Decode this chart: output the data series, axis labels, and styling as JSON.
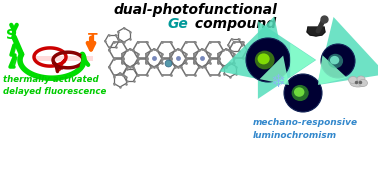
{
  "title_line1": "dual-photofunctional",
  "title_line2_ge": "Ge",
  "title_line2_rest": " compound",
  "title_fontsize": 10,
  "title_color": "#000000",
  "ge_color": "#009999",
  "left_label": "thermally activated\ndelayed fluorescence",
  "left_label_color": "#00cc00",
  "right_label": "mechano-responsive\nluminochromism",
  "right_label_color": "#3388cc",
  "bg_color": "#ffffff",
  "S_label": "S",
  "T_label": "T",
  "S_color": "#00dd00",
  "T_color": "#ff6600",
  "snowflake_color": "#88bbee",
  "arrow_cyan_color": "#33ccaa",
  "arrow_green_color": "#66dd66",
  "disc_dark": "#000044",
  "figsize": [
    3.78,
    1.75
  ],
  "dpi": 100
}
